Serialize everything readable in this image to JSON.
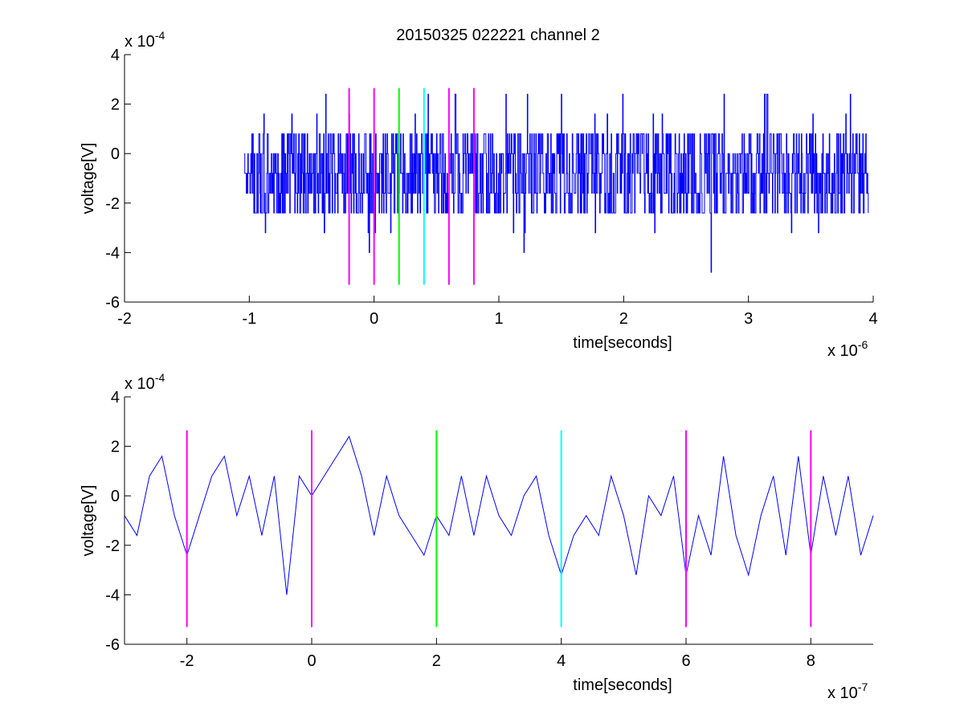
{
  "title": "20150325 022221 channel 2",
  "colors": {
    "signal": "#0000ff",
    "magenta": "#ff00ff",
    "green": "#00ff00",
    "cyan": "#00ffff",
    "axes": "#000000",
    "background": "#ffffff"
  },
  "chart_data": [
    {
      "type": "line",
      "xlabel": "time[seconds]",
      "ylabel": "voltage[V]",
      "x_multiplier": "x 10",
      "x_exponent": "-6",
      "y_multiplier": "x 10",
      "y_exponent": "-4",
      "xlim": [
        -2,
        4
      ],
      "ylim": [
        -6,
        4
      ],
      "xticks": [
        -2,
        -1,
        0,
        1,
        2,
        3,
        4
      ],
      "xtick_labels": [
        "-2",
        "-1",
        "0",
        "1",
        "2",
        "3",
        "4"
      ],
      "yticks": [
        -6,
        -4,
        -2,
        0,
        2,
        4
      ],
      "ytick_labels": [
        "-6",
        "-4",
        "-2",
        "0",
        "2",
        "4"
      ],
      "grid": false,
      "style": "stairs",
      "series": [
        {
          "color": "signal",
          "x_range": [
            -1.04,
            3.96
          ],
          "levels": [
            -3.2,
            -2.4,
            -1.6,
            -0.8,
            0,
            0.8,
            1.6,
            2.4
          ],
          "typical_range": [
            -2.4,
            0.8
          ],
          "extremes": [
            {
              "x": -0.04,
              "y": -4.0
            },
            {
              "x": 1.2,
              "y": -4.0
            },
            {
              "x": 2.7,
              "y": -4.8
            },
            {
              "x": 0.65,
              "y": 2.4
            },
            {
              "x": 1.5,
              "y": 2.4
            },
            {
              "x": 3.13,
              "y": 2.4
            },
            {
              "x": 3.15,
              "y": 2.4
            }
          ]
        }
      ],
      "markers": [
        {
          "x": -0.2,
          "y_range": [
            -5.3,
            2.65
          ],
          "color": "magenta"
        },
        {
          "x": 0.0,
          "y_range": [
            -5.3,
            2.65
          ],
          "color": "magenta"
        },
        {
          "x": 0.2,
          "y_range": [
            -5.3,
            2.65
          ],
          "color": "green"
        },
        {
          "x": 0.4,
          "y_range": [
            -5.3,
            2.65
          ],
          "color": "cyan"
        },
        {
          "x": 0.6,
          "y_range": [
            -5.3,
            2.65
          ],
          "color": "magenta"
        },
        {
          "x": 0.8,
          "y_range": [
            -5.3,
            2.65
          ],
          "color": "magenta"
        }
      ]
    },
    {
      "type": "line",
      "xlabel": "time[seconds]",
      "ylabel": "voltage[V]",
      "x_multiplier": "x 10",
      "x_exponent": "-7",
      "y_multiplier": "x 10",
      "y_exponent": "-4",
      "xlim": [
        -3,
        9
      ],
      "ylim": [
        -6,
        4
      ],
      "xticks": [
        -2,
        0,
        2,
        4,
        6,
        8
      ],
      "xtick_labels": [
        "-2",
        "0",
        "2",
        "4",
        "6",
        "8"
      ],
      "yticks": [
        -6,
        -4,
        -2,
        0,
        2,
        4
      ],
      "ytick_labels": [
        "-6",
        "-4",
        "-2",
        "0",
        "2",
        "4"
      ],
      "grid": false,
      "series": [
        {
          "color": "signal",
          "x": [
            -3.0,
            -2.8,
            -2.6,
            -2.4,
            -2.2,
            -2.0,
            -1.8,
            -1.6,
            -1.4,
            -1.2,
            -1.0,
            -0.8,
            -0.6,
            -0.4,
            -0.2,
            0.0,
            0.2,
            0.4,
            0.6,
            0.8,
            1.0,
            1.2,
            1.4,
            1.6,
            1.8,
            2.0,
            2.2,
            2.4,
            2.6,
            2.8,
            3.0,
            3.2,
            3.4,
            3.6,
            3.8,
            4.0,
            4.2,
            4.4,
            4.6,
            4.8,
            5.0,
            5.2,
            5.4,
            5.6,
            5.8,
            6.0,
            6.2,
            6.4,
            6.6,
            6.8,
            7.0,
            7.2,
            7.4,
            7.6,
            7.8,
            8.0,
            8.2,
            8.4,
            8.6,
            8.8,
            9.0
          ],
          "y": [
            -0.8,
            -1.6,
            0.8,
            1.6,
            -0.8,
            -2.4,
            -0.8,
            0.8,
            1.6,
            -0.8,
            0.8,
            -1.6,
            0.8,
            -4.0,
            0.8,
            0.0,
            0.8,
            1.6,
            2.4,
            0.8,
            -1.6,
            0.8,
            -0.8,
            -1.6,
            -2.4,
            -0.8,
            -1.6,
            0.8,
            -1.6,
            0.8,
            -0.8,
            -1.6,
            0.0,
            0.8,
            -1.6,
            -3.2,
            -1.6,
            -0.8,
            -1.6,
            0.8,
            -0.8,
            -3.2,
            0.0,
            -0.8,
            0.8,
            -3.2,
            -0.8,
            -2.4,
            1.6,
            -1.6,
            -3.2,
            -0.8,
            0.8,
            -2.4,
            1.6,
            -2.4,
            0.8,
            -1.6,
            0.8,
            -2.4,
            -0.8
          ]
        }
      ],
      "markers": [
        {
          "x": -2,
          "y_range": [
            -5.3,
            2.65
          ],
          "color": "magenta"
        },
        {
          "x": 0,
          "y_range": [
            -5.3,
            2.65
          ],
          "color": "magenta"
        },
        {
          "x": 2,
          "y_range": [
            -5.3,
            2.65
          ],
          "color": "green"
        },
        {
          "x": 4,
          "y_range": [
            -5.3,
            2.65
          ],
          "color": "cyan"
        },
        {
          "x": 6,
          "y_range": [
            -5.3,
            2.65
          ],
          "color": "magenta"
        },
        {
          "x": 8,
          "y_range": [
            -5.3,
            2.65
          ],
          "color": "magenta"
        }
      ]
    }
  ]
}
